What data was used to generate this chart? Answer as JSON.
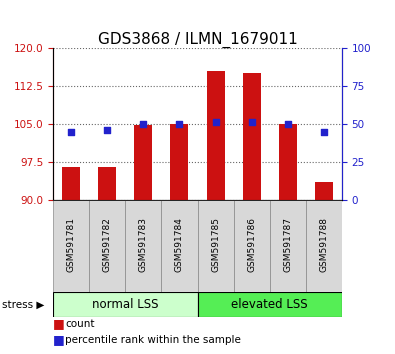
{
  "title": "GDS3868 / ILMN_1679011",
  "samples": [
    "GSM591781",
    "GSM591782",
    "GSM591783",
    "GSM591784",
    "GSM591785",
    "GSM591786",
    "GSM591787",
    "GSM591788"
  ],
  "counts": [
    96.5,
    96.5,
    104.8,
    105.0,
    115.5,
    115.0,
    105.0,
    93.5
  ],
  "percentile_ranks_pct": [
    45,
    46,
    50,
    50,
    51,
    51,
    50,
    45
  ],
  "ylim_left": [
    90,
    120
  ],
  "ylim_right": [
    0,
    100
  ],
  "yticks_left": [
    90,
    97.5,
    105,
    112.5,
    120
  ],
  "yticks_right": [
    0,
    25,
    50,
    75,
    100
  ],
  "bar_color": "#cc1111",
  "dot_color": "#2222cc",
  "bar_base": 90,
  "group1_label": "normal LSS",
  "group2_label": "elevated LSS",
  "group1_color": "#ccffcc",
  "group2_color": "#55ee55",
  "stress_label": "stress",
  "legend_count": "count",
  "legend_pct": "percentile rank within the sample",
  "title_fontsize": 11,
  "axis_color_left": "#cc1111",
  "axis_color_right": "#2222cc"
}
